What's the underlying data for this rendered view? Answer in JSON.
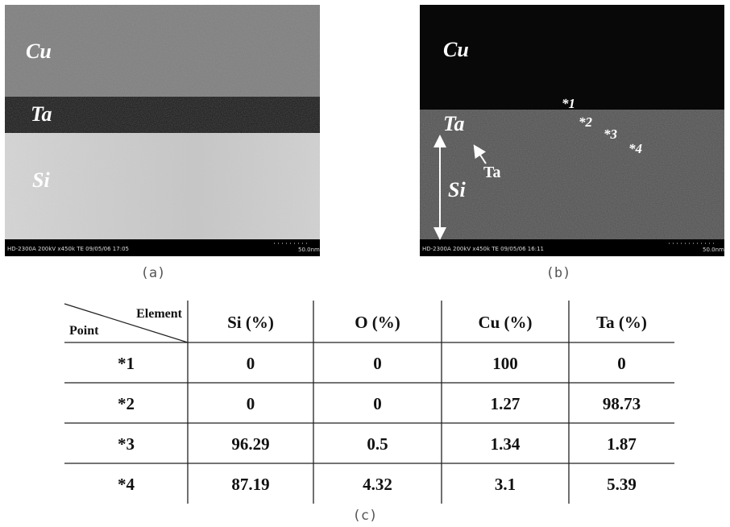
{
  "panels": [
    {
      "caption": "(a)",
      "labels": {
        "cu": "Cu",
        "ta": "Ta",
        "si": "Si"
      },
      "footer": "HD-2300A 200kV x450k TE 09/05/06 17:05",
      "scale": "50.0nm"
    },
    {
      "caption": "(b)",
      "labels": {
        "cu": "Cu",
        "ta": "Ta",
        "si": "Si",
        "ta_arrow": "Ta",
        "p1": "*1",
        "p2": "*2",
        "p3": "*3",
        "p4": "*4"
      },
      "footer": "HD-2300A 200kV x450k TE 09/05/06 16:11",
      "scale": "50.0nm"
    }
  ],
  "table": {
    "corner_top": "Element",
    "corner_bottom": "Point",
    "columns": [
      "Si (%)",
      "O (%)",
      "Cu (%)",
      "Ta (%)"
    ],
    "rows": [
      [
        "*1",
        0,
        0,
        100,
        0
      ],
      [
        "*2",
        0,
        0,
        1.27,
        98.73
      ],
      [
        "*3",
        96.29,
        0.5,
        1.34,
        1.87
      ],
      [
        "*4",
        87.19,
        4.32,
        3.1,
        5.39
      ]
    ],
    "caption": "(c)"
  }
}
